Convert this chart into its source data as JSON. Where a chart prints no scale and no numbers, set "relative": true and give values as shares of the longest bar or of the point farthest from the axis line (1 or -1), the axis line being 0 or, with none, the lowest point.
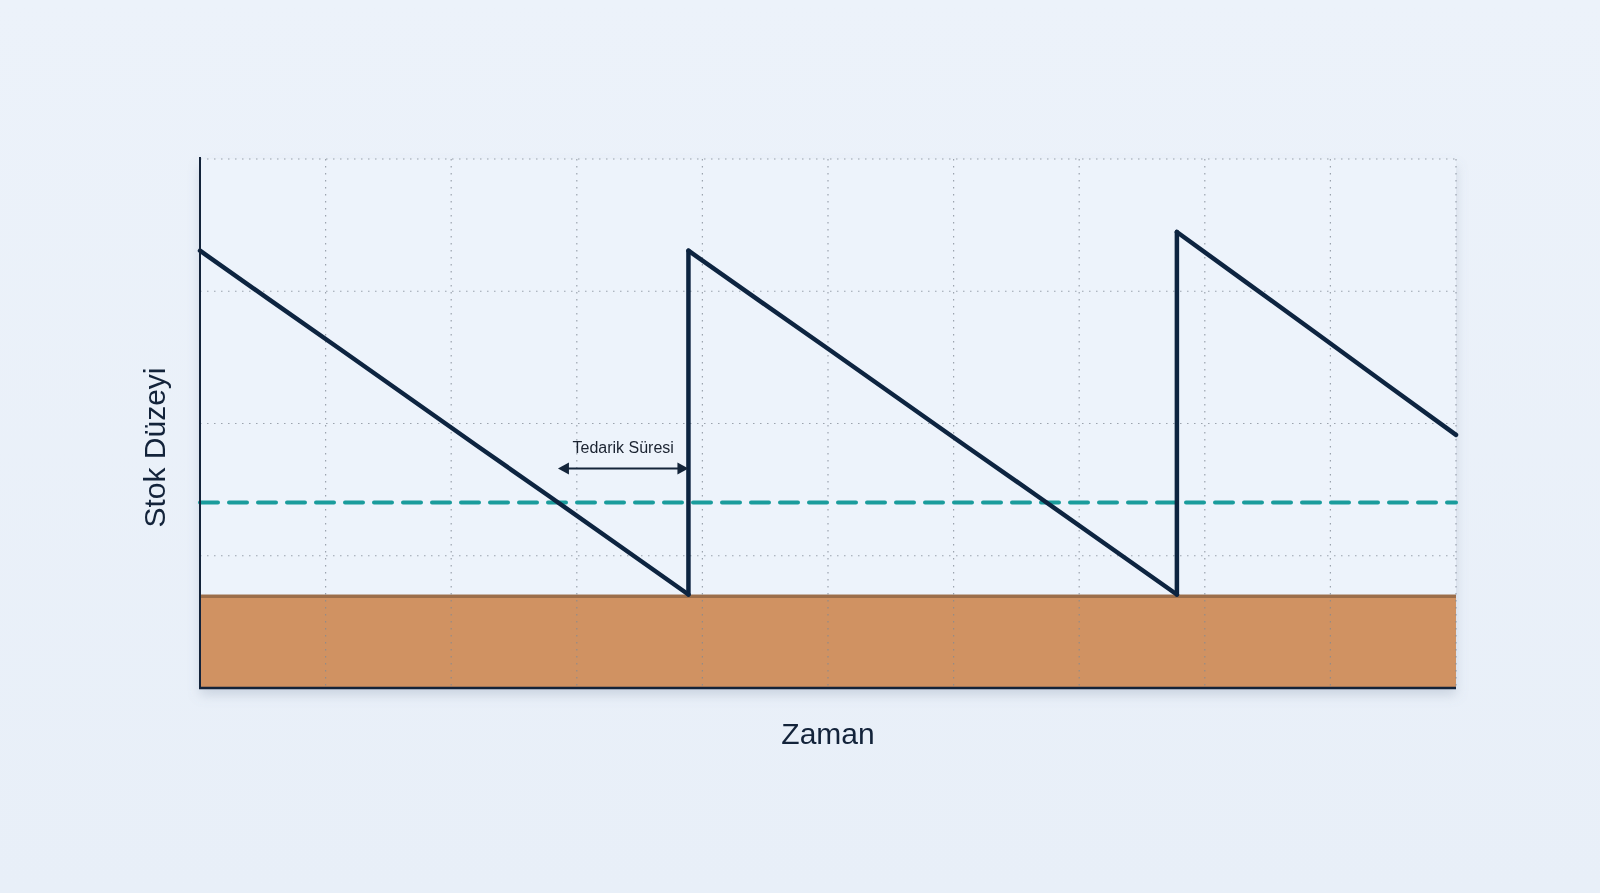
{
  "chart_data": {
    "type": "line",
    "relative": true,
    "xlabel": "Zaman",
    "ylabel": "Stok Düzeyi",
    "categories": [
      null,
      null,
      null,
      null,
      null,
      null,
      null,
      null,
      null,
      null,
      null,
      null,
      null,
      null,
      null,
      null,
      null,
      null,
      null
    ],
    "series": [
      {
        "color": "#0d2440",
        "values": [
          0.959,
          0.851,
          0.744,
          0.636,
          0.528,
          0.421,
          0.313,
          0.205,
          null,
          null,
          null,
          null,
          null,
          null,
          null,
          null,
          null,
          null,
          null
        ]
      },
      {
        "color": "#0d2440",
        "values": [
          null,
          null,
          null,
          null,
          null,
          null,
          null,
          0.959,
          0.851,
          0.744,
          0.636,
          0.528,
          0.421,
          0.313,
          0.205,
          null,
          null,
          null,
          null
        ]
      },
      {
        "color": "#0d2440",
        "values": [
          null,
          null,
          null,
          null,
          null,
          null,
          null,
          null,
          null,
          null,
          null,
          null,
          null,
          null,
          1,
          0.889,
          0.778,
          0.666,
          0.555
        ]
      }
    ],
    "grid": true,
    "bands": [
      {
        "axis": "y",
        "from": 0,
        "to": 0.205,
        "color": "#d09262"
      }
    ],
    "ref_lines": [
      {
        "axis": "y",
        "value": 0.407,
        "color": "#1a9c9c",
        "line_style": "dashed"
      }
    ],
    "annotations": [
      "Tedarik Süresi"
    ]
  }
}
